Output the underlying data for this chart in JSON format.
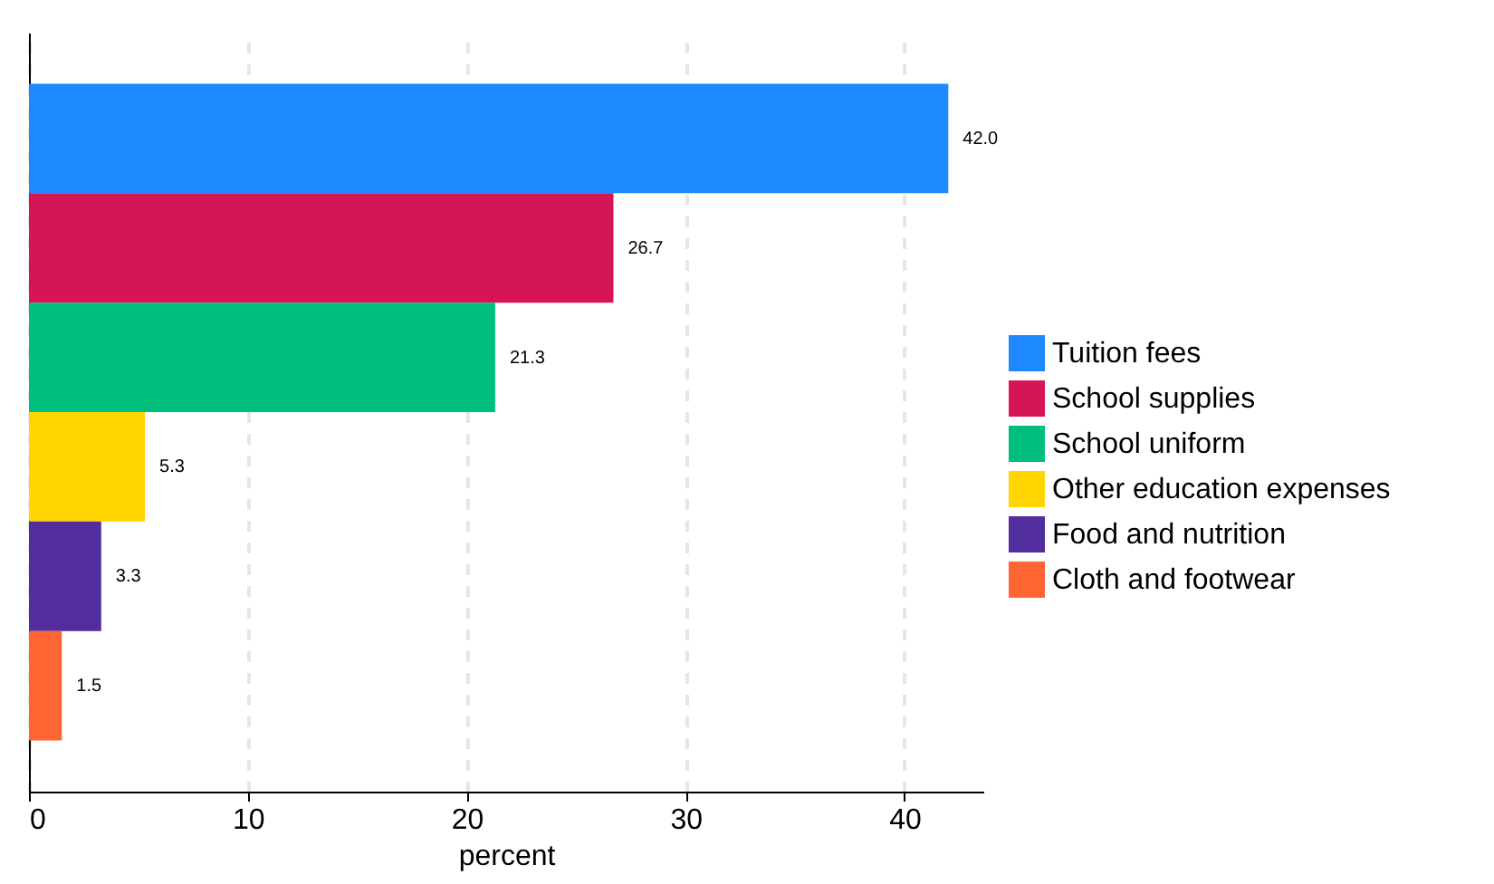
{
  "chart_data": {
    "type": "bar",
    "orientation": "horizontal",
    "xlabel": "percent",
    "categories": [
      null
    ],
    "series": [
      {
        "name": "Tuition fees",
        "color": "#1e88ff",
        "values": [
          42.0
        ],
        "value_labels": [
          "42.0"
        ]
      },
      {
        "name": "School supplies",
        "color": "#d61557",
        "values": [
          26.7
        ],
        "value_labels": [
          "26.7"
        ]
      },
      {
        "name": "School uniform",
        "color": "#00bf7d",
        "values": [
          21.3
        ],
        "value_labels": [
          "21.3"
        ]
      },
      {
        "name": "Other education expenses",
        "color": "#ffd400",
        "values": [
          5.3
        ],
        "value_labels": [
          "5.3"
        ]
      },
      {
        "name": "Food and nutrition",
        "color": "#512d9e",
        "values": [
          3.3
        ],
        "value_labels": [
          "3.3"
        ]
      },
      {
        "name": "Cloth and footwear",
        "color": "#ff6433",
        "values": [
          1.5
        ],
        "value_labels": [
          "1.5"
        ]
      }
    ],
    "xlim": [
      0,
      43.6
    ],
    "xticks": [
      0,
      10,
      20,
      30,
      40
    ],
    "grid": "x",
    "legend": "right",
    "tick_labels": "x"
  }
}
